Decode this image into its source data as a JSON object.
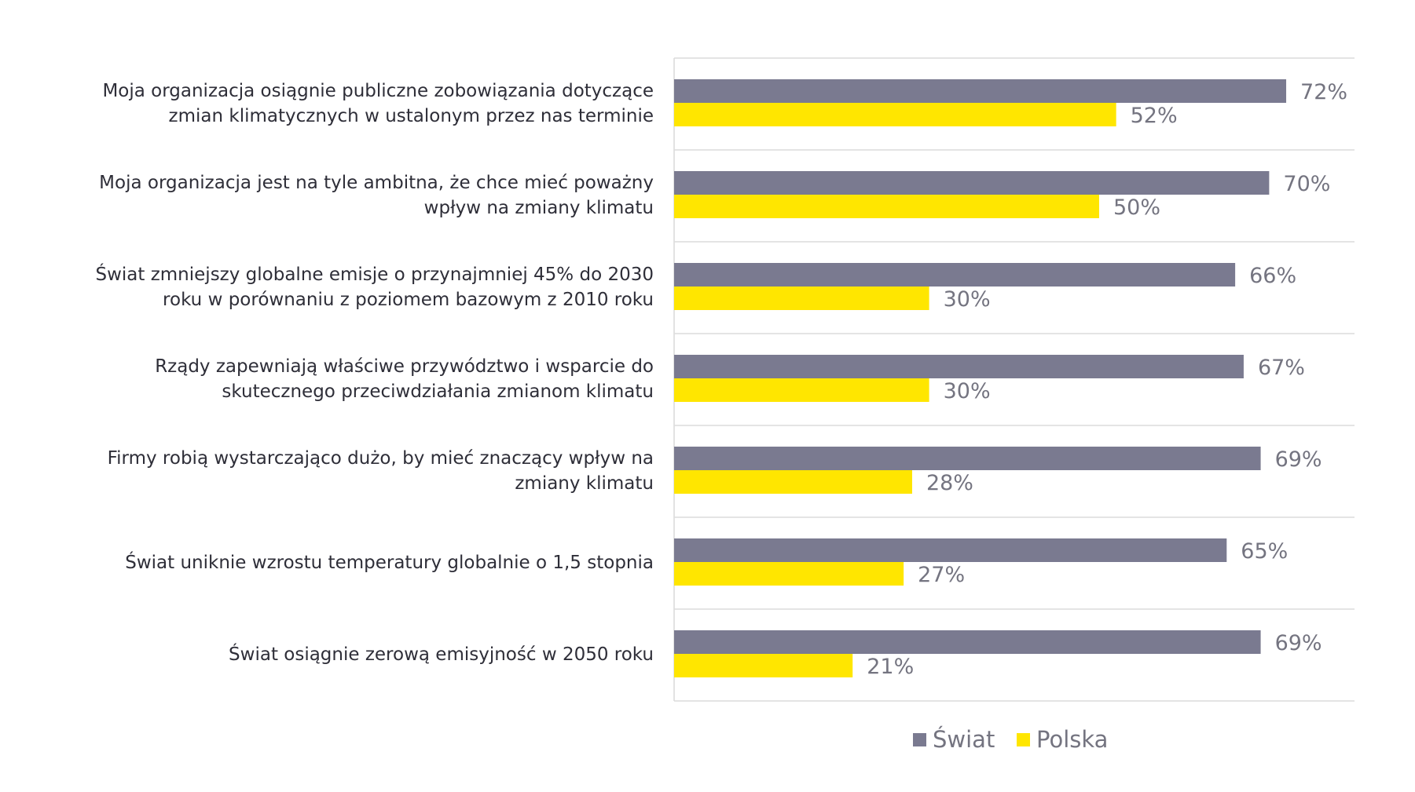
{
  "chart_data": {
    "type": "bar",
    "orientation": "horizontal",
    "categories": [
      [
        "Moja organizacja osiągnie publiczne zobowiązania dotyczące",
        "zmian klimatycznych w ustalonym przez nas terminie"
      ],
      [
        "Moja organizacja jest na tyle ambitna, że chce mieć poważny",
        "wpływ na zmiany klimatu"
      ],
      [
        "Świat zmniejszy globalne emisje o przynajmniej 45% do 2030",
        "roku w porównaniu z poziomem bazowym z 2010 roku"
      ],
      [
        "Rządy zapewniają właściwe przywództwo i wsparcie do",
        "skutecznego przeciwdziałania zmianom klimatu"
      ],
      [
        "Firmy robią wystarczająco dużo, by mieć znaczący wpływ na",
        "zmiany klimatu"
      ],
      [
        "Świat uniknie wzrostu temperatury globalnie o 1,5 stopnia"
      ],
      [
        "Świat osiągnie zerową emisyjność w 2050 roku"
      ]
    ],
    "series": [
      {
        "name": "Świat",
        "color": "#7a7a90",
        "values": [
          72,
          70,
          66,
          67,
          69,
          65,
          69
        ]
      },
      {
        "name": "Polska",
        "color": "#ffe600",
        "values": [
          52,
          50,
          30,
          30,
          28,
          27,
          21
        ]
      }
    ],
    "value_suffix": "%",
    "xlim": [
      0,
      80
    ],
    "legend_position": "bottom",
    "grid": true,
    "title": "",
    "xlabel": "",
    "ylabel": ""
  }
}
